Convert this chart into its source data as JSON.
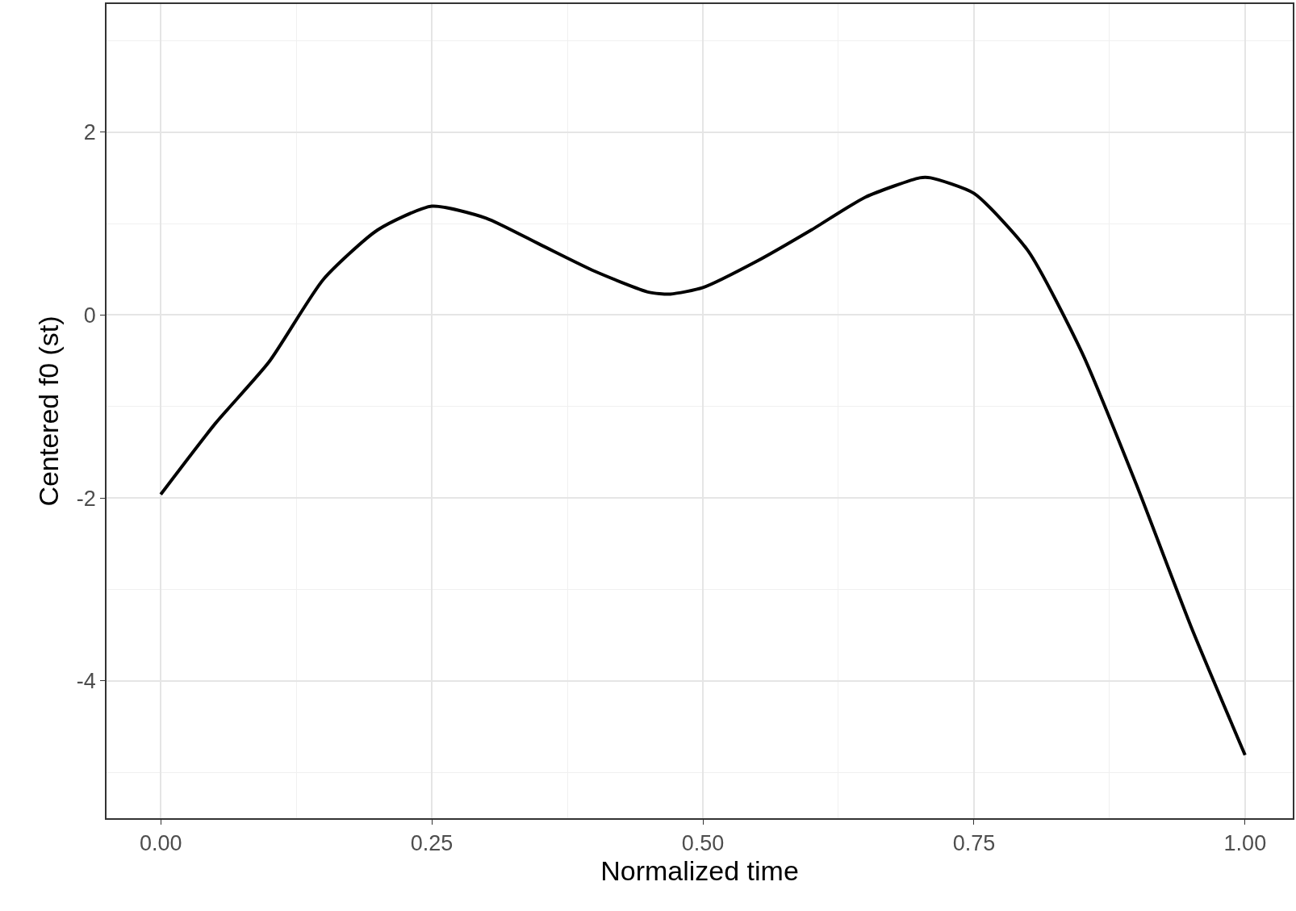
{
  "chart_data": {
    "type": "line",
    "xlabel": "Normalized time",
    "ylabel": "Centered f0 (st)",
    "x": [
      0,
      0.05,
      0.1,
      0.15,
      0.2,
      0.25,
      0.3,
      0.35,
      0.4,
      0.45,
      0.47,
      0.5,
      0.55,
      0.6,
      0.65,
      0.7,
      0.71,
      0.75,
      0.8,
      0.85,
      0.9,
      0.95,
      1.0
    ],
    "series": [
      {
        "color": "#000000",
        "values": [
          -1.96,
          -1.19,
          -0.51,
          0.39,
          0.93,
          1.19,
          1.06,
          0.77,
          0.48,
          0.25,
          0.23,
          0.3,
          0.59,
          0.93,
          1.29,
          1.5,
          1.5,
          1.33,
          0.7,
          -0.42,
          -1.86,
          -3.4,
          -4.81
        ]
      }
    ],
    "xlim": [
      -0.05,
      1.044
    ],
    "ylim": [
      -5.5,
      3.4
    ],
    "xticks": [
      {
        "value": 0,
        "label": "0.00"
      },
      {
        "value": 0.25,
        "label": "0.25"
      },
      {
        "value": 0.5,
        "label": "0.50"
      },
      {
        "value": 0.75,
        "label": "0.75"
      },
      {
        "value": 1,
        "label": "1.00"
      }
    ],
    "yticks": [
      -4,
      -2,
      0,
      2
    ],
    "grid": true,
    "legend": false
  }
}
